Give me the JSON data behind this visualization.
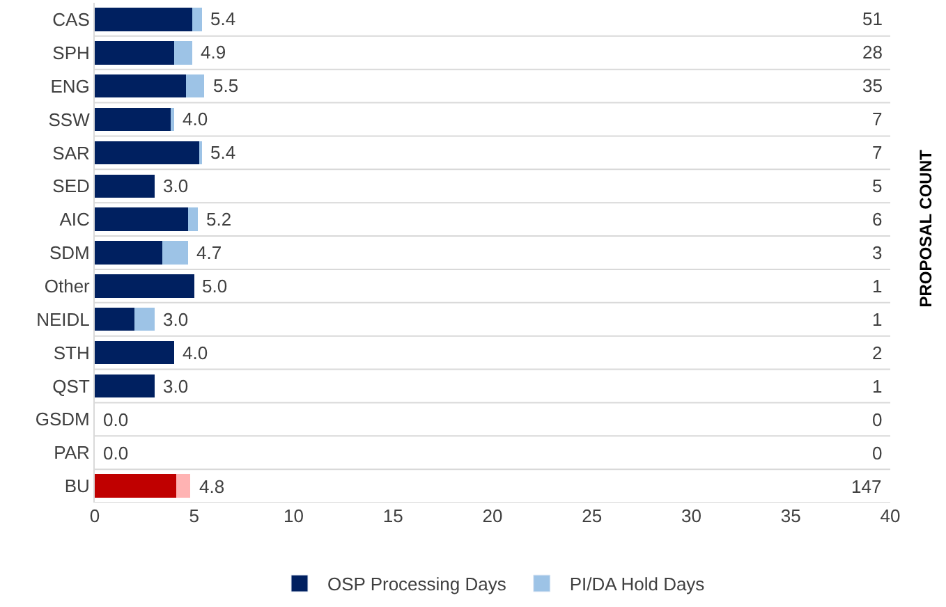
{
  "chart_data": {
    "type": "bar",
    "orientation": "horizontal",
    "stacked": true,
    "categories": [
      "CAS",
      "SPH",
      "ENG",
      "SSW",
      "SAR",
      "SED",
      "AIC",
      "SDM",
      "Other",
      "NEIDL",
      "STH",
      "QST",
      "GSDM",
      "PAR",
      "BU"
    ],
    "series": [
      {
        "name": "OSP Processing Days",
        "color": "#002060",
        "colors": [
          "#002060",
          "#002060",
          "#002060",
          "#002060",
          "#002060",
          "#002060",
          "#002060",
          "#002060",
          "#002060",
          "#002060",
          "#002060",
          "#002060",
          "#002060",
          "#002060",
          "#c00000"
        ],
        "values": [
          4.9,
          4.0,
          4.6,
          3.8,
          5.3,
          3.0,
          4.7,
          3.4,
          5.0,
          2.0,
          4.0,
          3.0,
          0,
          0,
          4.1
        ]
      },
      {
        "name": "PI/DA Hold Days",
        "color": "#9dc3e6",
        "colors": [
          "#9dc3e6",
          "#9dc3e6",
          "#9dc3e6",
          "#9dc3e6",
          "#9dc3e6",
          "#9dc3e6",
          "#9dc3e6",
          "#9dc3e6",
          "#9dc3e6",
          "#9dc3e6",
          "#9dc3e6",
          "#9dc3e6",
          "#9dc3e6",
          "#9dc3e6",
          "#ffb3b3"
        ],
        "values": [
          0.5,
          0.9,
          0.9,
          0.2,
          0.1,
          0,
          0.5,
          1.3,
          0,
          1.0,
          0,
          0,
          0,
          0,
          0.7
        ]
      }
    ],
    "totals": [
      "5.4",
      "4.9",
      "5.5",
      "4.0",
      "5.4",
      "3.0",
      "5.2",
      "4.7",
      "5.0",
      "3.0",
      "4.0",
      "3.0",
      "0.0",
      "0.0",
      "4.8"
    ],
    "y2label": "PROPOSAL COUNT",
    "annotations": [
      "51",
      "28",
      "35",
      "7",
      "7",
      "5",
      "6",
      "3",
      "1",
      "1",
      "2",
      "1",
      "0",
      "0",
      "147"
    ],
    "xlim": [
      0,
      40
    ],
    "xticks": [
      0,
      5,
      10,
      15,
      20,
      25,
      30,
      35,
      40
    ],
    "grid": "y",
    "legend": "bottom"
  }
}
